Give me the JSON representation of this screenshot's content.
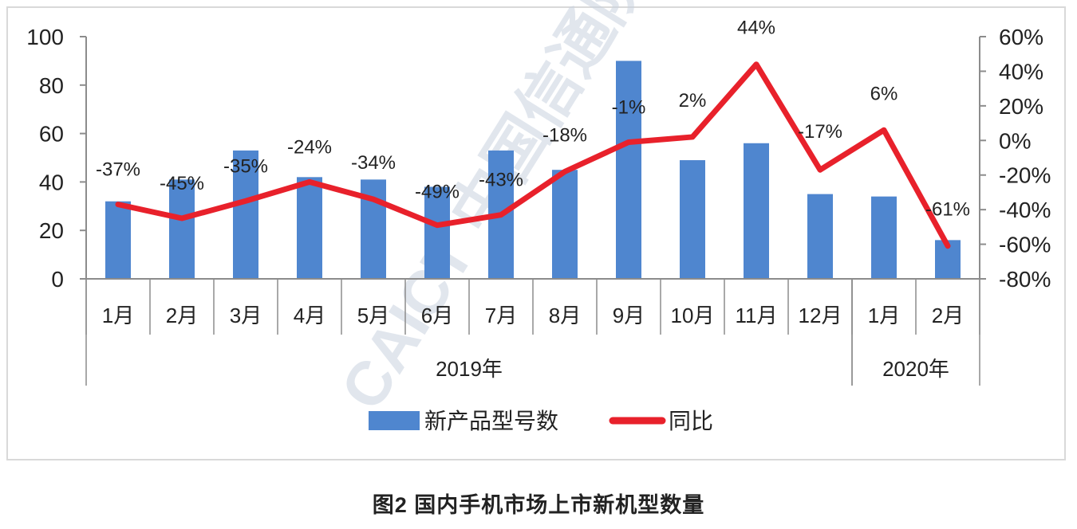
{
  "chart_data": {
    "type": "bar+line",
    "title": "",
    "caption": "图2  国内手机市场上市新机型数量",
    "categories": [
      "1月",
      "2月",
      "3月",
      "4月",
      "5月",
      "6月",
      "7月",
      "8月",
      "9月",
      "10月",
      "11月",
      "12月",
      "1月",
      "2月"
    ],
    "category_groups": [
      {
        "label": "2019年",
        "span": 12
      },
      {
        "label": "2020年",
        "span": 2
      }
    ],
    "series": [
      {
        "name": "新产品型号数",
        "type": "bar",
        "axis": "left",
        "color": "#4f86cf",
        "values": [
          32,
          41,
          53,
          42,
          41,
          38,
          53,
          45,
          90,
          49,
          56,
          35,
          34,
          16
        ]
      },
      {
        "name": "同比",
        "type": "line",
        "axis": "right",
        "color": "#e8212b",
        "values": [
          -37,
          -45,
          -35,
          -24,
          -34,
          -49,
          -43,
          -18,
          -1,
          2,
          44,
          -17,
          6,
          -61
        ],
        "labels": [
          "-37%",
          "-45%",
          "-35%",
          "-24%",
          "-34%",
          "-49%",
          "-43%",
          "-18%",
          "-1%",
          "2%",
          "44%",
          "-17%",
          "6%",
          "-61%"
        ]
      }
    ],
    "ylim": [
      0,
      100
    ],
    "yticks": [
      "0",
      "20",
      "40",
      "60",
      "80",
      "100"
    ],
    "y2lim": [
      -80,
      60
    ],
    "y2ticks": [
      "-80%",
      "-60%",
      "-40%",
      "-20%",
      "0%",
      "20%",
      "40%",
      "60%"
    ],
    "legend": {
      "position": "bottom",
      "entries": [
        "新产品型号数",
        "同比"
      ]
    },
    "grid": false,
    "xlabel": "",
    "ylabel": "",
    "y2label": ""
  },
  "watermark": "CAICT 中国信通院"
}
